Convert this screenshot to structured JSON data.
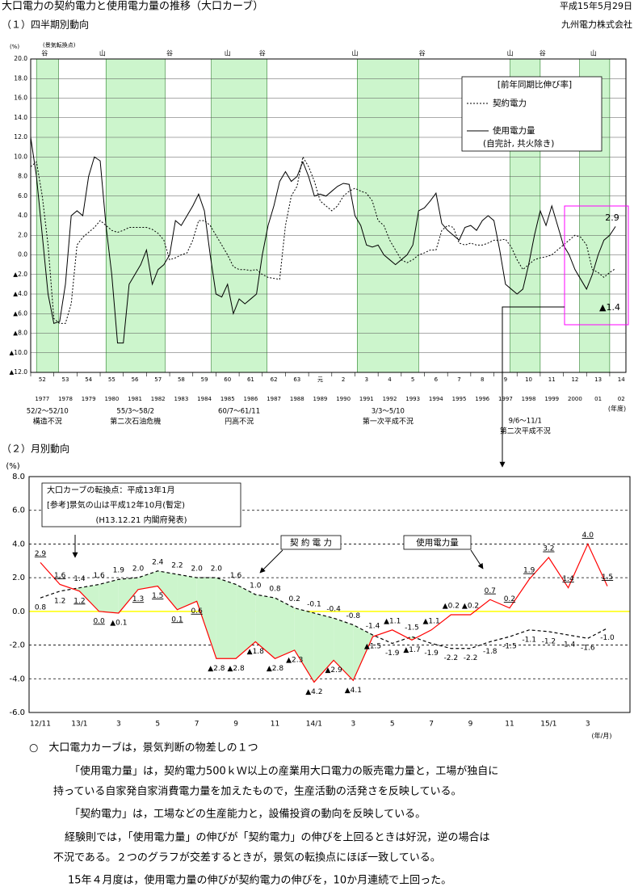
{
  "header": {
    "title": "大口電力の契約電力と使用電力量の推移（大口カーブ）",
    "date": "平成15年5月29日",
    "company": "九州電力株式会社"
  },
  "chart_data": [
    {
      "type": "line",
      "title": "（１）四半期別動向",
      "y_unit": "(%)",
      "turning_point_caption": "(景気転換点)",
      "x": [
        1977,
        1977.25,
        1977.5,
        1977.75,
        1978,
        1978.25,
        1978.5,
        1978.75,
        1979,
        1979.25,
        1979.5,
        1979.75,
        1980,
        1980.25,
        1980.5,
        1980.75,
        1981,
        1981.25,
        1981.5,
        1981.75,
        1982,
        1982.25,
        1982.5,
        1982.75,
        1983,
        1983.25,
        1983.5,
        1983.75,
        1984,
        1984.25,
        1984.5,
        1984.75,
        1985,
        1985.25,
        1985.5,
        1985.75,
        1986,
        1986.25,
        1986.5,
        1986.75,
        1987,
        1987.25,
        1987.5,
        1987.75,
        1988,
        1988.25,
        1988.5,
        1988.75,
        1989,
        1989.25,
        1989.5,
        1989.75,
        1990,
        1990.25,
        1990.5,
        1990.75,
        1991,
        1991.25,
        1991.5,
        1991.75,
        1992,
        1992.25,
        1992.5,
        1992.75,
        1993,
        1993.25,
        1993.5,
        1993.75,
        1994,
        1994.25,
        1994.5,
        1994.75,
        1995,
        1995.25,
        1995.5,
        1995.75,
        1996,
        1996.25,
        1996.5,
        1996.75,
        1997,
        1997.25,
        1997.5,
        1997.75,
        1998,
        1998.25,
        1998.5,
        1998.75,
        1999,
        1999.25,
        1999.5,
        1999.75,
        2000,
        2000.25,
        2000.5,
        2000.75,
        2001,
        2001.25,
        2001.5,
        2001.75,
        2002,
        2002.25
      ],
      "series": [
        {
          "name": "契約電力",
          "color": "#000000",
          "style": "dotted",
          "values": [
            9,
            9.5,
            6,
            1,
            -6.5,
            -7,
            -7,
            -5,
            1,
            1.8,
            2.3,
            2.8,
            3.5,
            3,
            2.5,
            2.3,
            2.5,
            2.8,
            2.8,
            2.8,
            2.8,
            2.6,
            2.2,
            1.5,
            -0.5,
            -0.3,
            0,
            0.2,
            1.5,
            3.5,
            3.5,
            3,
            2,
            1,
            0,
            -1.2,
            -1.5,
            -1.5,
            -1.6,
            -1.5,
            -2,
            -2.3,
            -2.4,
            -2.5,
            3,
            6,
            7,
            10,
            9,
            7.5,
            5.5,
            5,
            4.5,
            5,
            6,
            6.5,
            6.8,
            6.5,
            6.3,
            5.5,
            3.5,
            3,
            1.5,
            0.5,
            -0.5,
            -0.8,
            -0.5,
            0,
            0.2,
            0.5,
            0.5,
            2.5,
            3,
            2.8,
            1.2,
            1,
            1.2,
            1,
            1,
            1.2,
            1.5,
            1.5,
            1.6,
            0.8,
            -0.5,
            -1.5,
            -1,
            -0.5,
            -0.3,
            -0.2,
            0,
            0.5,
            1,
            1.5,
            2,
            1.8,
            1,
            -1.5,
            -1.8,
            -2.3,
            -1.8,
            -1.4
          ]
        },
        {
          "name": "使用電力量",
          "color": "#000000",
          "style": "solid",
          "values": [
            12,
            8,
            2,
            -4,
            -7,
            -6.8,
            -3,
            4,
            4.5,
            4,
            8,
            10,
            9.6,
            3,
            -2,
            -9,
            -9,
            -3,
            -2,
            -1,
            0.5,
            -3,
            -1.5,
            -1,
            0,
            3.5,
            3,
            4,
            5,
            6.2,
            4.5,
            0,
            -4,
            -4.3,
            -3,
            -6,
            -4.5,
            -5,
            -4.5,
            -4,
            0,
            3,
            5,
            7.5,
            8.5,
            7.5,
            8,
            9.5,
            8,
            6,
            6.2,
            6,
            6.5,
            7,
            7.3,
            7.2,
            4,
            3,
            1,
            0.8,
            1,
            0,
            -0.5,
            -1,
            -0.5,
            0,
            1,
            4.5,
            4.8,
            5.5,
            6.3,
            3.2,
            2.5,
            2,
            1.5,
            2.8,
            3,
            2.5,
            3.5,
            4,
            3.5,
            0.5,
            -3,
            -3.5,
            -4,
            -3.5,
            -1,
            2,
            4.5,
            3,
            5,
            3,
            1,
            0,
            -1.5,
            -2.5,
            -3.5,
            -2,
            0,
            1.5,
            2,
            2.9
          ]
        }
      ],
      "legend_title": "[前年同期比伸び率]",
      "legend_note": "(自完計, 共火除き)",
      "legend_position": "upper right",
      "annotations": [
        "2.9",
        "▲1.4"
      ],
      "xlim": [
        1977,
        2002.7
      ],
      "ylim": [
        -12,
        20
      ],
      "yticks": [
        {
          "value": 20,
          "label": "20.0"
        },
        {
          "value": 18,
          "label": "18.0"
        },
        {
          "value": 16,
          "label": "16.0"
        },
        {
          "value": 14,
          "label": "14.0"
        },
        {
          "value": 12,
          "label": "12.0"
        },
        {
          "value": 10,
          "label": "10.0"
        },
        {
          "value": 8,
          "label": "8.0"
        },
        {
          "value": 6,
          "label": "6.0"
        },
        {
          "value": 4,
          "label": "4.0"
        },
        {
          "value": 2,
          "label": "2.0"
        },
        {
          "value": 0,
          "label": "0.0"
        },
        {
          "value": -2,
          "label": "▲2.0"
        },
        {
          "value": -4,
          "label": "▲4.0"
        },
        {
          "value": -6,
          "label": "▲6.0"
        },
        {
          "value": -8,
          "label": "▲8.0"
        },
        {
          "value": -10,
          "label": "▲10.0"
        },
        {
          "value": -12,
          "label": "▲12.0"
        }
      ],
      "grid": true,
      "grid_style": "solid",
      "era_labels": [
        "52",
        "53",
        "54",
        "55",
        "56",
        "57",
        "58",
        "59",
        "60",
        "61",
        "62",
        "63",
        "元",
        "2",
        "3",
        "4",
        "5",
        "6",
        "7",
        "8",
        "9",
        "10",
        "11",
        "12",
        "13",
        "14"
      ],
      "year_labels": [
        "1977",
        "1978",
        "1979",
        "1980",
        "1981",
        "1982",
        "1983",
        "1984",
        "1985",
        "1986",
        "1987",
        "1988",
        "1989",
        "1990",
        "1991",
        "1992",
        "1993",
        "1994",
        "1995",
        "1996",
        "1997",
        "1998",
        "1999",
        "2000",
        "01",
        "02"
      ],
      "x_unit": "(年度)",
      "band_color": "#ccf5cc",
      "bands": [
        {
          "start": 1977.25,
          "end": 1978.2,
          "period": "52/2～52/10",
          "name": "構造不況"
        },
        {
          "start": 1980.25,
          "end": 1982.8,
          "period": "55/3～58/2",
          "name": "第二次石油危機"
        },
        {
          "start": 1984.8,
          "end": 1987.2,
          "period": "60/7～61/11",
          "name": "円高不況"
        },
        {
          "start": 1991.1,
          "end": 1993.75,
          "period": "3/3～5/10",
          "name": "第一次平成不況"
        },
        {
          "start": 1997.7,
          "end": 1999.0,
          "period": "9/6～11/1",
          "name": "第二次平成不況"
        },
        {
          "start": 2000.7,
          "end": 2002.0
        }
      ],
      "turning_points": [
        {
          "x": 1977.6,
          "label": "谷"
        },
        {
          "x": 1980.1,
          "label": "山"
        },
        {
          "x": 1983.0,
          "label": "谷"
        },
        {
          "x": 1985.5,
          "label": "山"
        },
        {
          "x": 1987.0,
          "label": "谷"
        },
        {
          "x": 1991.0,
          "label": "山"
        },
        {
          "x": 1993.9,
          "label": "谷"
        },
        {
          "x": 1997.7,
          "label": "山"
        },
        {
          "x": 1999.1,
          "label": "谷"
        },
        {
          "x": 2001.3,
          "label": "山"
        }
      ]
    },
    {
      "type": "line",
      "title": "（２）月別動向",
      "y_unit": "(%)",
      "x_unit": "(年/月)",
      "categories": [
        "12/11",
        null,
        "13/1",
        null,
        "3",
        null,
        "5",
        null,
        "7",
        null,
        "9",
        null,
        "11",
        null,
        "14/1",
        null,
        "3",
        null,
        "5",
        null,
        "7",
        null,
        "9",
        null,
        "11",
        null,
        "15/1",
        null,
        "3",
        null
      ],
      "series": [
        {
          "name": "契約電力",
          "color": "#000000",
          "style": "dashed",
          "values": [
            0.8,
            1.2,
            1.4,
            1.6,
            1.9,
            2.0,
            2.4,
            2.2,
            2.0,
            2.0,
            1.6,
            1.0,
            0.8,
            0.2,
            -0.1,
            -0.4,
            -0.8,
            -1.4,
            -1.9,
            -1.5,
            -1.9,
            -2.2,
            -2.2,
            -1.8,
            -1.5,
            -1.1,
            -1.2,
            -1.4,
            -1.6,
            -1.0
          ],
          "value_labels": [
            "0.8",
            "1.2",
            "1.4",
            "1.6",
            "1.9",
            "2.0",
            "2.4",
            "2.2",
            "2.0",
            "2.0",
            "1.6",
            "1.0",
            "0.8",
            "0.2",
            "-0.1",
            "-0.4",
            "-0.8",
            "-1.4",
            "-1.9",
            "-1.5",
            "-1.9",
            "-2.2",
            "-2.2",
            "-1.8",
            "-1.5",
            "-1.1",
            "-1.2",
            "-1.4",
            "-1.6",
            "-1.0"
          ]
        },
        {
          "name": "使用電力量",
          "color": "#ff0000",
          "style": "solid",
          "values": [
            2.9,
            1.6,
            1.2,
            0.0,
            -0.1,
            1.3,
            1.5,
            0.1,
            0.6,
            -2.8,
            -2.8,
            -1.8,
            -2.8,
            -2.3,
            -4.2,
            -2.9,
            -4.1,
            -1.5,
            -1.1,
            -1.7,
            -1.1,
            -0.2,
            -0.2,
            0.7,
            0.2,
            1.9,
            3.2,
            1.4,
            4.0,
            1.5
          ],
          "value_labels": [
            "2.9",
            "1.6",
            "1.2",
            "0.0",
            "▲0.1",
            "1.3",
            "1.5",
            "0.1",
            "0.6",
            "▲2.8",
            "▲2.8",
            "▲1.8",
            "▲2.8",
            "▲2.3",
            "▲4.2",
            "▲2.9",
            "▲4.1",
            "▲1.5",
            "▲1.1",
            "▲1.7",
            "▲1.1",
            "▲0.2",
            "▲0.2",
            "0.7",
            "0.2",
            "1.9",
            "3.2",
            "1.4",
            "4.0",
            "1.5"
          ]
        }
      ],
      "ylim": [
        -6,
        8
      ],
      "yticks": [
        {
          "value": 8,
          "label": "8.0"
        },
        {
          "value": 6,
          "label": "6.0"
        },
        {
          "value": 4,
          "label": "4.0"
        },
        {
          "value": 2,
          "label": "2.0"
        },
        {
          "value": 0,
          "label": "0.0"
        },
        {
          "value": -2,
          "label": "-2.0"
        },
        {
          "value": -4,
          "label": "-4.0"
        },
        {
          "value": -6,
          "label": "-6.0"
        }
      ],
      "grid": true,
      "grid_style": "dashed",
      "zero_line_color": "#ffff00",
      "fill_between_color": "#ccf5cc",
      "note": [
        "大口カーブの転換点：平成13年1月",
        "[参考]景気の山は平成12年10月(暫定)",
        "(H13.12.21 内閣府発表)"
      ],
      "callouts": [
        "契 約 電 力",
        "使用電力量"
      ]
    }
  ],
  "notes": [
    "○　大口電力カーブは，景気判断の物差しの１つ",
    "「使用電力量」は，契約電力500ｋＷ以上の産業用大口電力の販売電力量と，工場が独自に",
    "持っている自家発自家消費電力量を加えたもので，生産活動の活発さを反映している。",
    "「契約電力」は，工場などの生産能力と，設備投資の動向を反映している。",
    "経験則では，「使用電力量」の伸びが「契約電力」の伸びを上回るときは好況，逆の場合は",
    "不況である。２つのグラフが交差するときが，景気の転換点にほぼ一致している。",
    "15年４月度は，使用電力量の伸びが契約電力の伸びを，10か月連続で上回った。"
  ]
}
